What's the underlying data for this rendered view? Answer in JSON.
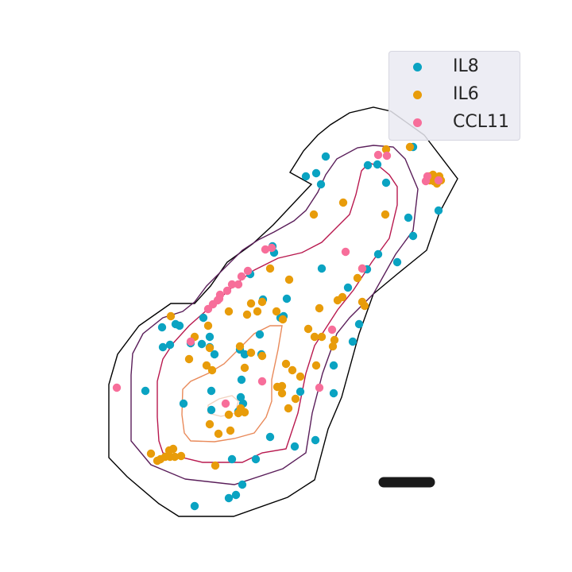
{
  "chart_data": {
    "type": "scatter",
    "title": "",
    "xlabel": "",
    "ylabel": "",
    "axes_visible": false,
    "grid": false,
    "legend_placement": "top-right",
    "contour_colors": [
      "#000000",
      "#5a1e5a",
      "#b8184e",
      "#e98a5a",
      "#f2d2c0"
    ],
    "scale_bar_color": "#1a1a1a",
    "series": [
      {
        "name": "IL8",
        "color": "#0aa3c2",
        "points": [
          [
            385,
            222
          ],
          [
            398,
            218
          ],
          [
            404,
            232
          ],
          [
            410,
            197
          ],
          [
            520,
            185
          ],
          [
            545,
            225
          ],
          [
            552,
            265
          ],
          [
            520,
            297
          ],
          [
            514,
            274
          ],
          [
            500,
            330
          ],
          [
            476,
            320
          ],
          [
            486,
            230
          ],
          [
            475,
            207
          ],
          [
            463,
            208
          ],
          [
            462,
            339
          ],
          [
            438,
            362
          ],
          [
            405,
            338
          ],
          [
            452,
            408
          ],
          [
            444,
            430
          ],
          [
            420,
            460
          ],
          [
            420,
            495
          ],
          [
            397,
            554
          ],
          [
            371,
            562
          ],
          [
            340,
            550
          ],
          [
            322,
            578
          ],
          [
            292,
            578
          ],
          [
            305,
            610
          ],
          [
            297,
            623
          ],
          [
            288,
            627
          ],
          [
            245,
            637
          ],
          [
            183,
            492
          ],
          [
            231,
            508
          ],
          [
            266,
            492
          ],
          [
            304,
            478
          ],
          [
            303,
            500
          ],
          [
            300,
            518
          ],
          [
            266,
            516
          ],
          [
            264,
            437
          ],
          [
            270,
            446
          ],
          [
            302,
            440
          ],
          [
            308,
            446
          ],
          [
            329,
            446
          ],
          [
            331,
            377
          ],
          [
            343,
            310
          ],
          [
            345,
            318
          ],
          [
            315,
            345
          ],
          [
            327,
            421
          ],
          [
            378,
            493
          ],
          [
            361,
            376
          ],
          [
            357,
            398
          ],
          [
            353,
            400
          ],
          [
            256,
            400
          ],
          [
            264,
            424
          ],
          [
            254,
            433
          ],
          [
            240,
            432
          ],
          [
            204,
            412
          ],
          [
            214,
            434
          ],
          [
            205,
            437
          ],
          [
            221,
            408
          ],
          [
            226,
            410
          ],
          [
            306,
            508
          ]
        ]
      },
      {
        "name": "IL6",
        "color": "#e89c0a",
        "points": [
          [
            395,
            270
          ],
          [
            432,
            255
          ],
          [
            485,
            270
          ],
          [
            486,
            188
          ],
          [
            516,
            185
          ],
          [
            541,
            227
          ],
          [
            546,
            228
          ],
          [
            550,
            231
          ],
          [
            553,
            222
          ],
          [
            555,
            227
          ],
          [
            540,
            222
          ],
          [
            545,
            220
          ],
          [
            456,
            338
          ],
          [
            450,
            350
          ],
          [
            431,
            374
          ],
          [
            425,
            378
          ],
          [
            456,
            380
          ],
          [
            459,
            385
          ],
          [
            405,
            424
          ],
          [
            396,
            424
          ],
          [
            421,
            428
          ],
          [
            402,
            388
          ],
          [
            388,
            414
          ],
          [
            419,
            436
          ],
          [
            360,
            458
          ],
          [
            368,
            466
          ],
          [
            378,
            474
          ],
          [
            355,
            486
          ],
          [
            349,
            487
          ],
          [
            355,
            495
          ],
          [
            372,
            502
          ],
          [
            363,
            514
          ],
          [
            330,
            448
          ],
          [
            316,
            444
          ],
          [
            302,
            436
          ],
          [
            308,
            463
          ],
          [
            290,
            542
          ],
          [
            288,
            522
          ],
          [
            275,
            546
          ],
          [
            271,
            586
          ],
          [
            228,
            574
          ],
          [
            220,
            575
          ],
          [
            214,
            575
          ],
          [
            208,
            575
          ],
          [
            202,
            578
          ],
          [
            198,
            580
          ],
          [
            190,
            571
          ],
          [
            213,
            567
          ],
          [
            238,
            452
          ],
          [
            245,
            424
          ],
          [
            262,
            410
          ],
          [
            264,
            438
          ],
          [
            260,
            460
          ],
          [
            267,
            466
          ],
          [
            264,
            534
          ],
          [
            300,
            520
          ],
          [
            308,
            519
          ],
          [
            303,
            514
          ],
          [
            340,
            338
          ],
          [
            364,
            352
          ],
          [
            311,
            396
          ],
          [
            324,
            392
          ],
          [
            316,
            382
          ],
          [
            330,
            380
          ],
          [
            348,
            392
          ],
          [
            356,
            402
          ],
          [
            398,
            460
          ],
          [
            288,
            392
          ],
          [
            215,
            398
          ],
          [
            218,
            565
          ]
        ]
      },
      {
        "name": "CCL11",
        "color": "#f76e9a",
        "points": [
          [
            476,
            195
          ],
          [
            487,
            196
          ],
          [
            538,
            222
          ],
          [
            536,
            228
          ],
          [
            552,
            227
          ],
          [
            435,
            317
          ],
          [
            456,
            338
          ],
          [
            418,
            415
          ],
          [
            402,
            488
          ],
          [
            342,
            312
          ],
          [
            334,
            314
          ],
          [
            312,
            341
          ],
          [
            304,
            348
          ],
          [
            292,
            358
          ],
          [
            286,
            366
          ],
          [
            277,
            371
          ],
          [
            274,
            378
          ],
          [
            268,
            383
          ],
          [
            262,
            389
          ],
          [
            276,
            376
          ],
          [
            300,
            358
          ],
          [
            240,
            430
          ],
          [
            147,
            488
          ],
          [
            330,
            480
          ],
          [
            284,
            508
          ]
        ]
      }
    ]
  }
}
